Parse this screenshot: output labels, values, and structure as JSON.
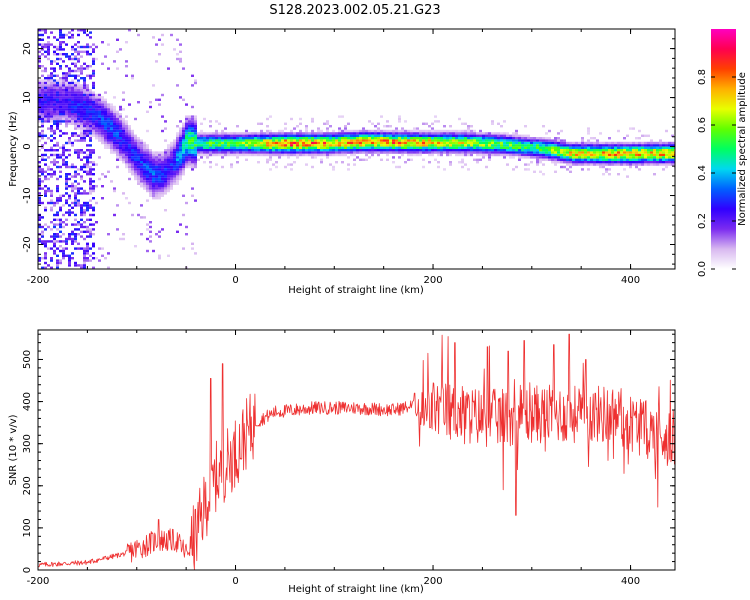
{
  "figure_title": "S128.2023.002.05.21.G23",
  "chart_data": [
    {
      "type": "heatmap",
      "title": "S128.2023.002.05.21.G23",
      "xlabel": "Height of straight line (km)",
      "ylabel": "Frequency (Hz)",
      "xlim": [
        -200,
        445
      ],
      "ylim": [
        -25,
        24
      ],
      "xticks": [
        "-200",
        "0",
        "200",
        "400"
      ],
      "yticks": [
        "-20",
        "-10",
        "0",
        "10",
        "20"
      ],
      "colorbar": {
        "label": "Normalized spectral amplitude",
        "range": [
          0,
          1
        ],
        "ticks": [
          "0.0",
          "0.2",
          "0.4",
          "0.6",
          "0.8"
        ],
        "colors": [
          "#ffffff",
          "#d8b8f0",
          "#7b2cf0",
          "#3000ff",
          "#0060ff",
          "#00d8f0",
          "#00ff60",
          "#60ff00",
          "#e8ff00",
          "#ffb000",
          "#ff4000",
          "#ff0050",
          "#ff00c0"
        ]
      },
      "ridge_freq_track": {
        "height_km": [
          -175,
          -160,
          -145,
          -130,
          -115,
          -100,
          -85,
          -75,
          -65,
          -55,
          -50,
          -40,
          -20,
          0,
          50,
          100,
          130,
          180,
          230,
          270,
          290,
          310,
          340,
          380,
          420,
          445
        ],
        "freq_hz": [
          9.5,
          8.5,
          7,
          4.5,
          1.5,
          -2.5,
          -5.5,
          -5.5,
          -3.5,
          -0.5,
          1.5,
          0.8,
          0.8,
          0.8,
          0.8,
          0.9,
          1.2,
          1,
          1,
          0.6,
          0.2,
          -0.2,
          -1.2,
          -1.3,
          -1.2,
          -1.2
        ],
        "amplitude": [
          0.25,
          0.3,
          0.3,
          0.35,
          0.3,
          0.3,
          0.35,
          0.3,
          0.3,
          0.45,
          0.55,
          0.55,
          0.6,
          0.6,
          0.9,
          0.8,
          0.85,
          0.8,
          0.7,
          0.6,
          0.55,
          0.6,
          0.75,
          0.8,
          0.8,
          0.8
        ]
      }
    },
    {
      "type": "line",
      "xlabel": "Height of straight line (km)",
      "ylabel": "SNR (10 * v/v)",
      "xlim": [
        -200,
        445
      ],
      "ylim": [
        0,
        570
      ],
      "xticks": [
        "-200",
        "0",
        "200",
        "400"
      ],
      "yticks": [
        "0",
        "100",
        "200",
        "300",
        "400",
        "500"
      ],
      "color": "#ee3030",
      "trend": {
        "x": [
          -200,
          -150,
          -110,
          -80,
          -60,
          -50,
          -40,
          -30,
          -20,
          -10,
          0,
          10,
          20,
          40,
          80,
          120,
          160,
          180,
          190,
          200,
          230,
          260,
          300,
          340,
          380,
          420,
          445
        ],
        "y": [
          12,
          18,
          40,
          70,
          70,
          40,
          80,
          160,
          220,
          250,
          280,
          320,
          350,
          375,
          385,
          385,
          380,
          390,
          360,
          385,
          370,
          360,
          370,
          370,
          370,
          330,
          310
        ]
      },
      "spikes": {
        "x": [
          -78,
          -25,
          -13,
          181,
          222,
          255,
          276,
          284,
          292,
          322,
          338,
          355
        ],
        "y": [
          120,
          455,
          490,
          420,
          540,
          530,
          520,
          130,
          545,
          535,
          560,
          500
        ]
      }
    }
  ]
}
